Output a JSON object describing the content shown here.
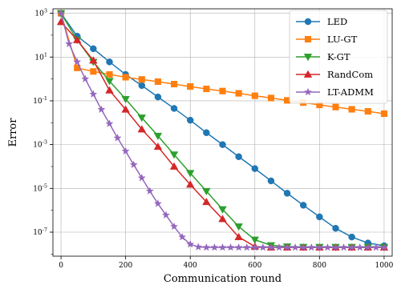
{
  "chart_data": {
    "type": "line",
    "xlabel": "Communication round",
    "ylabel": "Error",
    "xlim": [
      -25,
      1025
    ],
    "ylim": [
      8e-09,
      1600
    ],
    "yscale": "log",
    "x_ticks": [
      0,
      200,
      400,
      600,
      800,
      1000
    ],
    "x_tick_labels": [
      "0",
      "200",
      "400",
      "600",
      "800",
      "1000"
    ],
    "y_ticks": [
      1e-07,
      1e-05,
      0.001,
      0.1,
      10,
      1000
    ],
    "y_tick_labels": [
      "10^-7",
      "10^-5",
      "10^-3",
      "10^-1",
      "10^1",
      "10^3"
    ],
    "grid": true,
    "legend_position": "top-right",
    "series": [
      {
        "name": "LED",
        "color": "#1f77b4",
        "marker": "circle",
        "x": [
          0,
          50,
          100,
          150,
          200,
          250,
          300,
          350,
          400,
          450,
          500,
          550,
          600,
          650,
          700,
          750,
          800,
          850,
          900,
          950,
          1000
        ],
        "y": [
          1000,
          90,
          24,
          6,
          1.6,
          0.5,
          0.15,
          0.045,
          0.013,
          0.0035,
          0.001,
          0.00028,
          8e-05,
          2.2e-05,
          6e-06,
          1.7e-06,
          5e-07,
          1.5e-07,
          6e-08,
          3.2e-08,
          2.4e-08
        ]
      },
      {
        "name": "LU-GT",
        "color": "#ff7f0e",
        "marker": "square",
        "x": [
          0,
          50,
          100,
          150,
          200,
          250,
          300,
          350,
          400,
          450,
          500,
          550,
          600,
          650,
          700,
          750,
          800,
          850,
          900,
          950,
          1000
        ],
        "y": [
          1000,
          3.2,
          2.2,
          1.6,
          1.2,
          0.95,
          0.75,
          0.58,
          0.45,
          0.35,
          0.28,
          0.22,
          0.17,
          0.135,
          0.105,
          0.083,
          0.065,
          0.052,
          0.041,
          0.033,
          0.026
        ]
      },
      {
        "name": "K-GT",
        "color": "#2ca02c",
        "marker": "triangle-down",
        "x": [
          0,
          50,
          100,
          150,
          200,
          250,
          300,
          350,
          400,
          450,
          500,
          550,
          600,
          650,
          700,
          750,
          800,
          850,
          900,
          950,
          1000
        ],
        "y": [
          1000,
          60,
          6,
          0.8,
          0.12,
          0.017,
          0.0025,
          0.00035,
          5e-05,
          7.5e-06,
          1.1e-06,
          1.8e-07,
          4.5e-08,
          2.5e-08,
          2.2e-08,
          2.1e-08,
          2.1e-08,
          2.1e-08,
          2.1e-08,
          2.1e-08,
          2.1e-08
        ]
      },
      {
        "name": "RandCom",
        "color": "#d62728",
        "marker": "triangle-up",
        "x": [
          0,
          50,
          100,
          150,
          200,
          250,
          300,
          350,
          400,
          450,
          500,
          550,
          600,
          650,
          700,
          750,
          800,
          850,
          900,
          950,
          1000
        ],
        "y": [
          400,
          60,
          7,
          0.3,
          0.04,
          0.005,
          0.0008,
          0.0001,
          1.5e-05,
          2.4e-06,
          4e-07,
          6e-08,
          2.2e-08,
          2e-08,
          2e-08,
          2e-08,
          2e-08,
          2e-08,
          2e-08,
          2e-08,
          2e-08
        ]
      },
      {
        "name": "LT-ADMM",
        "color": "#9467bd",
        "marker": "star",
        "x": [
          0,
          25,
          50,
          75,
          100,
          125,
          150,
          175,
          200,
          225,
          250,
          275,
          300,
          325,
          350,
          375,
          400,
          425,
          450,
          475,
          500,
          525,
          550,
          575,
          600,
          625,
          650,
          675,
          700,
          725,
          750,
          775,
          800,
          825,
          850,
          875,
          900,
          925,
          950,
          975,
          1000
        ],
        "y": [
          1000,
          40,
          6,
          1,
          0.2,
          0.04,
          0.009,
          0.002,
          0.0005,
          0.00012,
          3e-05,
          7.5e-06,
          2e-06,
          6e-07,
          1.8e-07,
          6e-08,
          2.8e-08,
          2.1e-08,
          2e-08,
          2e-08,
          2e-08,
          2e-08,
          2e-08,
          2e-08,
          2e-08,
          2e-08,
          2e-08,
          2e-08,
          2e-08,
          2e-08,
          2e-08,
          2e-08,
          2e-08,
          2e-08,
          2e-08,
          2e-08,
          2e-08,
          2e-08,
          2e-08,
          2e-08,
          2e-08
        ]
      }
    ]
  }
}
